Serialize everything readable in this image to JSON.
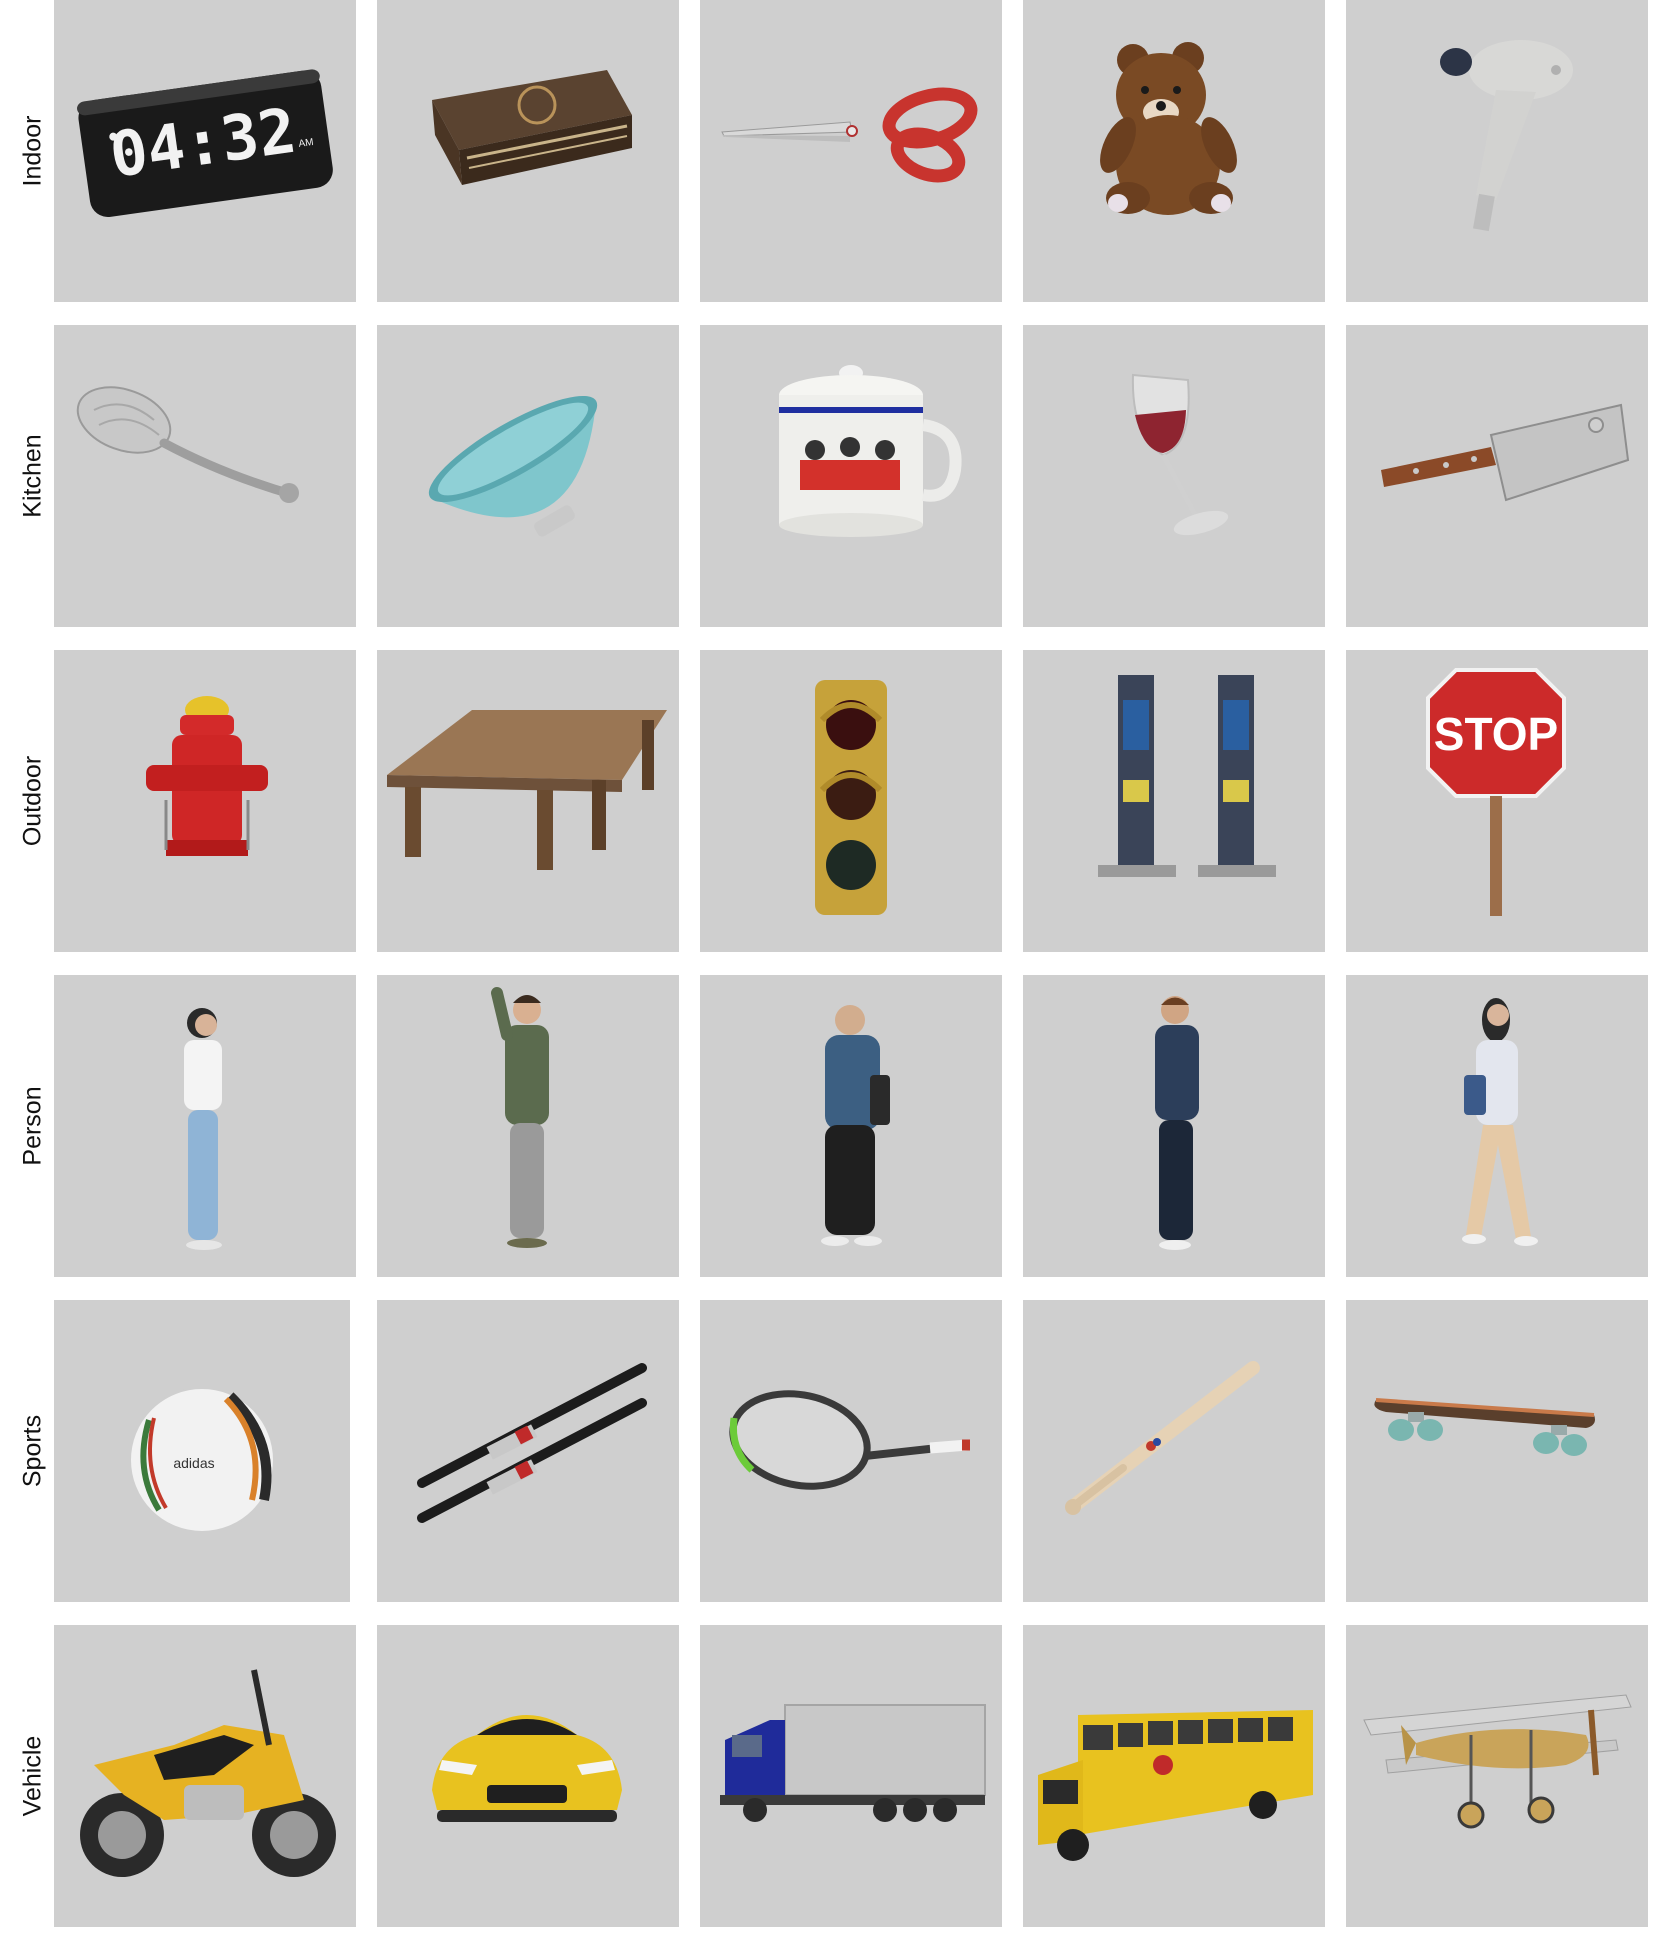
{
  "colors": {
    "tile_background": "#cfcfcf",
    "page_background": "#ffffff",
    "label_text": "#111111"
  },
  "rows": [
    {
      "label": "Indoor",
      "items": [
        {
          "icon": "alarm-clock-icon",
          "clock_digits": "04:32",
          "clock_ampm": "AM"
        },
        {
          "icon": "book-icon"
        },
        {
          "icon": "scissors-icon"
        },
        {
          "icon": "teddy-bear-icon"
        },
        {
          "icon": "hair-drier-icon"
        }
      ]
    },
    {
      "label": "Kitchen",
      "items": [
        {
          "icon": "spoon-icon"
        },
        {
          "icon": "bowl-icon"
        },
        {
          "icon": "cup-icon"
        },
        {
          "icon": "wine-glass-icon"
        },
        {
          "icon": "knife-icon"
        }
      ]
    },
    {
      "label": "Outdoor",
      "items": [
        {
          "icon": "fire-hydrant-icon"
        },
        {
          "icon": "bench-icon"
        },
        {
          "icon": "traffic-light-icon"
        },
        {
          "icon": "parking-meter-icon"
        },
        {
          "icon": "stop-sign-icon",
          "sign_text": "STOP"
        }
      ]
    },
    {
      "label": "Person",
      "items": [
        {
          "icon": "person-woman-standing-icon"
        },
        {
          "icon": "person-man-waving-icon"
        },
        {
          "icon": "person-man-hoodie-icon"
        },
        {
          "icon": "person-man-standing-icon"
        },
        {
          "icon": "person-woman-walking-icon"
        }
      ]
    },
    {
      "label": "Sports",
      "items": [
        {
          "icon": "sports-ball-icon",
          "ball_brand": "adidas"
        },
        {
          "icon": "skis-icon"
        },
        {
          "icon": "tennis-racket-icon"
        },
        {
          "icon": "baseball-bat-icon"
        },
        {
          "icon": "skateboard-icon"
        }
      ]
    },
    {
      "label": "Vehicle",
      "items": [
        {
          "icon": "motorcycle-icon"
        },
        {
          "icon": "car-icon"
        },
        {
          "icon": "truck-icon"
        },
        {
          "icon": "bus-icon"
        },
        {
          "icon": "airplane-icon"
        }
      ]
    }
  ]
}
